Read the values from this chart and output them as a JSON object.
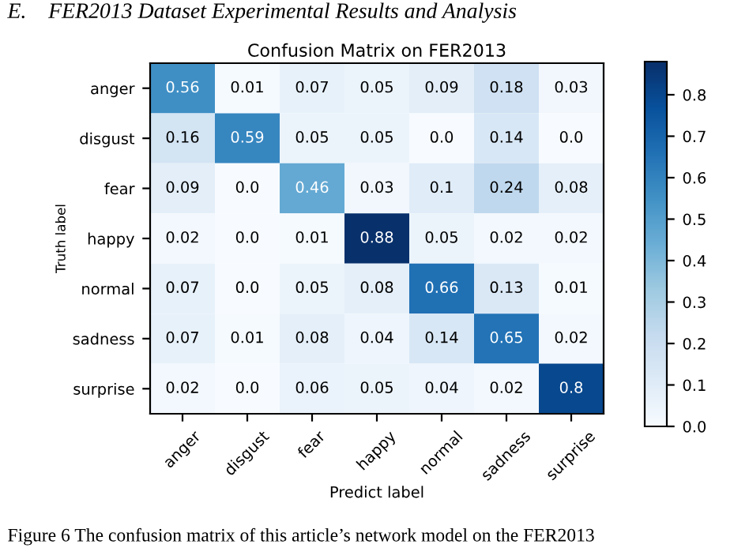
{
  "chart_data": {
    "type": "heatmap",
    "title": "Confusion Matrix on FER2013",
    "xlabel": "Predict label",
    "ylabel": "Truth label",
    "categories": [
      "anger",
      "disgust",
      "fear",
      "happy",
      "normal",
      "sadness",
      "surprise"
    ],
    "y_categories": [
      "anger",
      "disgust",
      "fear",
      "happy",
      "normal",
      "sadness",
      "surprise"
    ],
    "cells": [
      [
        0.56,
        0.01,
        0.07,
        0.05,
        0.09,
        0.18,
        0.03
      ],
      [
        0.16,
        0.59,
        0.05,
        0.05,
        0,
        0.14,
        0
      ],
      [
        0.09,
        0,
        0.46,
        0.03,
        0.1,
        0.24,
        0.08
      ],
      [
        0.02,
        0,
        0.01,
        0.88,
        0.05,
        0.02,
        0.02
      ],
      [
        0.07,
        0,
        0.05,
        0.08,
        0.66,
        0.13,
        0.01
      ],
      [
        0.07,
        0.01,
        0.08,
        0.04,
        0.14,
        0.65,
        0.02
      ],
      [
        0.02,
        0,
        0.06,
        0.05,
        0.04,
        0.02,
        0.8
      ]
    ],
    "cell_labels": [
      [
        "0.56",
        "0.01",
        "0.07",
        "0.05",
        "0.09",
        "0.18",
        "0.03"
      ],
      [
        "0.16",
        "0.59",
        "0.05",
        "0.05",
        "0.0",
        "0.14",
        "0.0"
      ],
      [
        "0.09",
        "0.0",
        "0.46",
        "0.03",
        "0.1",
        "0.24",
        "0.08"
      ],
      [
        "0.02",
        "0.0",
        "0.01",
        "0.88",
        "0.05",
        "0.02",
        "0.02"
      ],
      [
        "0.07",
        "0.0",
        "0.05",
        "0.08",
        "0.66",
        "0.13",
        "0.01"
      ],
      [
        "0.07",
        "0.01",
        "0.08",
        "0.04",
        "0.14",
        "0.65",
        "0.02"
      ],
      [
        "0.02",
        "0.0",
        "0.06",
        "0.05",
        "0.04",
        "0.02",
        "0.8"
      ]
    ],
    "clim": [
      0,
      0.88
    ],
    "cticks": [
      {
        "value": 0,
        "label": "0.0"
      },
      0.1,
      0.2,
      0.3,
      0.4,
      0.5,
      0.6,
      0.7,
      0.8
    ],
    "annotations": [
      "E.    FER2013 Dataset Experimental Results and Analysis",
      "Figure 6 The confusion matrix of this article’s network model on the FER2013"
    ]
  }
}
